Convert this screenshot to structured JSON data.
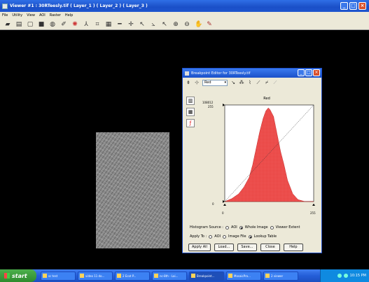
{
  "viewer": {
    "title": "Viewer #1 : 30RTeesly.tif ( Layer_1 ) ( Layer_2 ) ( Layer_3 )",
    "menu": [
      "File",
      "Utility",
      "View",
      "AOI",
      "Raster",
      "Help"
    ]
  },
  "dialog": {
    "title": "Breakpoint Editor for 30RTeesly.tif",
    "band_select": "Red",
    "chart_title": "Red",
    "histogram_source_label": "Histogram Source :",
    "histogram_source_options": [
      "AOI",
      "Whole Image",
      "Viewer Extent"
    ],
    "histogram_source_selected": "Whole Image",
    "apply_to_label": "Apply To :",
    "apply_to_options": [
      "AOI",
      "Image File",
      "Lookup Table"
    ],
    "apply_to_selected": "Lookup Table",
    "buttons": [
      "Apply All",
      "Load...",
      "Save...",
      "Close",
      "Help"
    ]
  },
  "chart_data": {
    "type": "area",
    "title": "Red",
    "ymax_label": "108012",
    "yaxis_top": "255",
    "yaxis_bottom": "0",
    "xaxis_left": "0",
    "xaxis_right": "255",
    "x": [
      0,
      20,
      40,
      55,
      70,
      80,
      90,
      100,
      110,
      118,
      125,
      130,
      140,
      150,
      160,
      170,
      180,
      195,
      210,
      230,
      255
    ],
    "values": [
      0,
      3,
      8,
      15,
      25,
      38,
      55,
      72,
      86,
      94,
      97,
      95,
      88,
      70,
      52,
      38,
      22,
      8,
      2,
      0,
      0
    ],
    "lookup_line": "diagonal"
  },
  "taskbar": {
    "start_label": "start",
    "tasks": [
      "sc test",
      "video 11 do...",
      "2 Ecot P...",
      "nc-8th - Lai...",
      "Breakpoint...",
      "MosaicPro...",
      "2 viewer"
    ],
    "clock": "10:15 PM"
  }
}
